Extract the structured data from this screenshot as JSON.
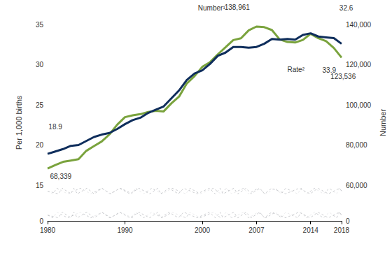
{
  "chart_data": {
    "type": "line",
    "x": [
      1980,
      1981,
      1982,
      1983,
      1984,
      1985,
      1986,
      1987,
      1988,
      1989,
      1990,
      1991,
      1992,
      1993,
      1994,
      1995,
      1996,
      1997,
      1998,
      1999,
      2000,
      2001,
      2002,
      2003,
      2004,
      2005,
      2006,
      2007,
      2008,
      2009,
      2010,
      2011,
      2012,
      2013,
      2014,
      2015,
      2016,
      2017,
      2018
    ],
    "series": [
      {
        "name": "Rate",
        "color": "#0f2e5c",
        "axis": "y",
        "values": [
          18.9,
          19.2,
          19.5,
          19.9,
          20.0,
          20.5,
          21.0,
          21.3,
          21.5,
          22.0,
          22.6,
          23.1,
          23.4,
          24.0,
          24.4,
          24.8,
          25.8,
          26.8,
          28.1,
          28.9,
          29.3,
          30.1,
          31.1,
          31.5,
          32.2,
          32.2,
          32.1,
          32.2,
          32.6,
          33.2,
          33.1,
          33.2,
          33.1,
          33.7,
          33.9,
          33.5,
          33.4,
          33.3,
          32.6
        ]
      },
      {
        "name": "Number",
        "color": "#7aa33d",
        "axis": "y2",
        "values": [
          68339,
          70049,
          71631,
          72287,
          72949,
          77102,
          79485,
          81778,
          85315,
          90118,
          93865,
          94779,
          95372,
          96445,
          97064,
          96736,
          100750,
          104137,
          110670,
          114307,
          118916,
          121246,
          125134,
          128665,
          132219,
          133122,
          137085,
          138961,
          138660,
          137217,
          132562,
          131269,
          131024,
          132324,
          135336,
          133155,
          131723,
          128310,
          123536
        ]
      }
    ],
    "ylabel": "Per 1,000 births",
    "y2label": "Number",
    "xlim": [
      1980,
      2018
    ],
    "xticks": [
      1980,
      1990,
      2000,
      2007,
      2014,
      2018
    ],
    "ylim": [
      0,
      35
    ],
    "yticks": [
      0,
      15,
      20,
      25,
      30,
      35
    ],
    "y2lim": [
      0,
      140000
    ],
    "y2ticks": [
      0,
      {
        "value": 60000,
        "label": "60,000"
      },
      {
        "value": 80000,
        "label": "80,000"
      },
      {
        "value": 100000,
        "label": "100,000"
      },
      {
        "value": 120000,
        "label": "120,000"
      },
      {
        "value": 140000,
        "label": "140,000"
      }
    ],
    "grid": false,
    "annotations": [
      {
        "text": "18.9",
        "x": 1981.0,
        "y": 22.3
      },
      {
        "text": "68,339",
        "x": 1981.7,
        "y": 16.1
      },
      {
        "text": "Number¹",
        "x": 2001.2,
        "y": 37.0
      },
      {
        "text": "138,961",
        "x": 2004.5,
        "y": 37.1
      },
      {
        "text": "Rate²",
        "x": 2012.1,
        "y": 29.4
      },
      {
        "text": "33.9",
        "x": 2016.4,
        "y": 29.3
      },
      {
        "text": "32.6",
        "x": 2018.6,
        "y": 37.0
      },
      {
        "text": "123,536",
        "x": 2018.2,
        "y": 28.5
      }
    ]
  }
}
